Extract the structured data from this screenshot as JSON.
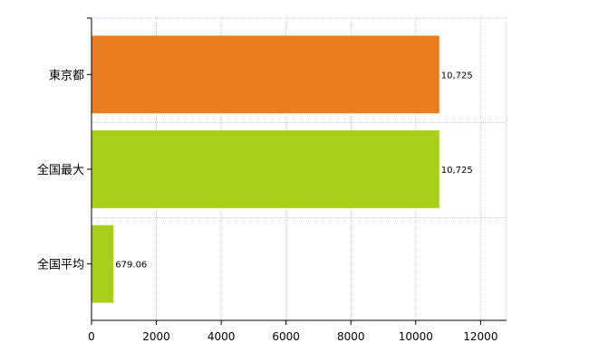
{
  "chart_data": {
    "type": "bar",
    "orientation": "horizontal",
    "categories": [
      "東京都",
      "全国最大",
      "全国平均"
    ],
    "values": [
      10725,
      10725,
      679.06
    ],
    "value_labels": [
      "10,725",
      "10,725",
      "679.06"
    ],
    "colors": [
      "#e87c1e",
      "#a8cf1a",
      "#a8cf1a"
    ],
    "xlim": [
      0,
      12800
    ],
    "xticks": [
      0,
      2000,
      4000,
      6000,
      8000,
      10000,
      12000
    ],
    "grid": true,
    "legend": "none"
  }
}
